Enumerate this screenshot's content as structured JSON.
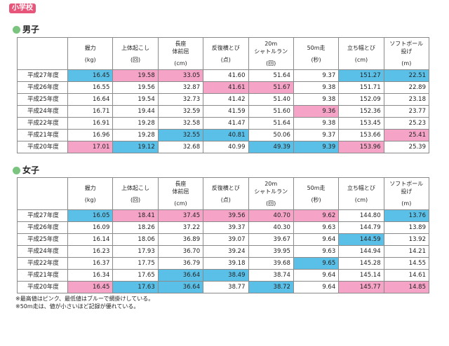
{
  "badge": "小学校",
  "colors": {
    "high": "#f5a3c7",
    "low": "#5bc0e8",
    "dot": "#7bc47f"
  },
  "headers": [
    {
      "name": "握力",
      "unit": "(kg)"
    },
    {
      "name": "上体起こし",
      "unit": "(回)"
    },
    {
      "name": "長座\n体前屈",
      "unit": "(cm)"
    },
    {
      "name": "反復横とび",
      "unit": "(点)"
    },
    {
      "name": "20m\nシャトルラン",
      "unit": "(回)"
    },
    {
      "name": "50m走",
      "unit": "(秒)"
    },
    {
      "name": "立ち幅とび",
      "unit": "(cm)"
    },
    {
      "name": "ソフトボール\n投げ",
      "unit": "(m)"
    }
  ],
  "sections": [
    {
      "title": "男子",
      "rows": [
        {
          "year": "平成27年度",
          "cells": [
            {
              "v": "16.45",
              "h": "lo"
            },
            {
              "v": "19.58",
              "h": "hi"
            },
            {
              "v": "33.05",
              "h": "hi"
            },
            {
              "v": "41.60",
              "h": ""
            },
            {
              "v": "51.64",
              "h": ""
            },
            {
              "v": "9.37",
              "h": ""
            },
            {
              "v": "151.27",
              "h": "lo"
            },
            {
              "v": "22.51",
              "h": "lo"
            }
          ]
        },
        {
          "year": "平成26年度",
          "cells": [
            {
              "v": "16.55",
              "h": ""
            },
            {
              "v": "19.56",
              "h": ""
            },
            {
              "v": "32.87",
              "h": ""
            },
            {
              "v": "41.61",
              "h": "hi"
            },
            {
              "v": "51.67",
              "h": "hi"
            },
            {
              "v": "9.38",
              "h": ""
            },
            {
              "v": "151.71",
              "h": ""
            },
            {
              "v": "22.89",
              "h": ""
            }
          ]
        },
        {
          "year": "平成25年度",
          "cells": [
            {
              "v": "16.64",
              "h": ""
            },
            {
              "v": "19.54",
              "h": ""
            },
            {
              "v": "32.73",
              "h": ""
            },
            {
              "v": "41.42",
              "h": ""
            },
            {
              "v": "51.40",
              "h": ""
            },
            {
              "v": "9.38",
              "h": ""
            },
            {
              "v": "152.09",
              "h": ""
            },
            {
              "v": "23.18",
              "h": ""
            }
          ]
        },
        {
          "year": "平成24年度",
          "cells": [
            {
              "v": "16.71",
              "h": ""
            },
            {
              "v": "19.44",
              "h": ""
            },
            {
              "v": "32.59",
              "h": ""
            },
            {
              "v": "41.59",
              "h": ""
            },
            {
              "v": "51.60",
              "h": ""
            },
            {
              "v": "9.36",
              "h": "hi"
            },
            {
              "v": "152.36",
              "h": ""
            },
            {
              "v": "23.77",
              "h": ""
            }
          ]
        },
        {
          "year": "平成22年度",
          "cells": [
            {
              "v": "16.91",
              "h": ""
            },
            {
              "v": "19.28",
              "h": ""
            },
            {
              "v": "32.58",
              "h": ""
            },
            {
              "v": "41.47",
              "h": ""
            },
            {
              "v": "51.64",
              "h": ""
            },
            {
              "v": "9.38",
              "h": ""
            },
            {
              "v": "153.45",
              "h": ""
            },
            {
              "v": "25.23",
              "h": ""
            }
          ]
        },
        {
          "year": "平成21年度",
          "cells": [
            {
              "v": "16.96",
              "h": ""
            },
            {
              "v": "19.28",
              "h": ""
            },
            {
              "v": "32.55",
              "h": "lo"
            },
            {
              "v": "40.81",
              "h": "lo"
            },
            {
              "v": "50.06",
              "h": ""
            },
            {
              "v": "9.37",
              "h": ""
            },
            {
              "v": "153.66",
              "h": ""
            },
            {
              "v": "25.41",
              "h": "hi"
            }
          ]
        },
        {
          "year": "平成20年度",
          "cells": [
            {
              "v": "17.01",
              "h": "hi"
            },
            {
              "v": "19.12",
              "h": "lo"
            },
            {
              "v": "32.68",
              "h": ""
            },
            {
              "v": "40.99",
              "h": ""
            },
            {
              "v": "49.39",
              "h": "lo"
            },
            {
              "v": "9.39",
              "h": "lo"
            },
            {
              "v": "153.96",
              "h": "hi"
            },
            {
              "v": "25.39",
              "h": ""
            }
          ]
        }
      ]
    },
    {
      "title": "女子",
      "rows": [
        {
          "year": "平成27年度",
          "cells": [
            {
              "v": "16.05",
              "h": "lo"
            },
            {
              "v": "18.41",
              "h": "hi"
            },
            {
              "v": "37.45",
              "h": "hi"
            },
            {
              "v": "39.56",
              "h": "hi"
            },
            {
              "v": "40.70",
              "h": "hi"
            },
            {
              "v": "9.62",
              "h": "hi"
            },
            {
              "v": "144.80",
              "h": ""
            },
            {
              "v": "13.76",
              "h": "lo"
            }
          ]
        },
        {
          "year": "平成26年度",
          "cells": [
            {
              "v": "16.09",
              "h": ""
            },
            {
              "v": "18.26",
              "h": ""
            },
            {
              "v": "37.22",
              "h": ""
            },
            {
              "v": "39.37",
              "h": ""
            },
            {
              "v": "40.30",
              "h": ""
            },
            {
              "v": "9.63",
              "h": ""
            },
            {
              "v": "144.79",
              "h": ""
            },
            {
              "v": "13.89",
              "h": ""
            }
          ]
        },
        {
          "year": "平成25年度",
          "cells": [
            {
              "v": "16.14",
              "h": ""
            },
            {
              "v": "18.06",
              "h": ""
            },
            {
              "v": "36.89",
              "h": ""
            },
            {
              "v": "39.07",
              "h": ""
            },
            {
              "v": "39.67",
              "h": ""
            },
            {
              "v": "9.64",
              "h": ""
            },
            {
              "v": "144.59",
              "h": "lo"
            },
            {
              "v": "13.92",
              "h": ""
            }
          ]
        },
        {
          "year": "平成24年度",
          "cells": [
            {
              "v": "16.23",
              "h": ""
            },
            {
              "v": "17.93",
              "h": ""
            },
            {
              "v": "36.70",
              "h": ""
            },
            {
              "v": "39.24",
              "h": ""
            },
            {
              "v": "39.95",
              "h": ""
            },
            {
              "v": "9.63",
              "h": ""
            },
            {
              "v": "144.94",
              "h": ""
            },
            {
              "v": "14.21",
              "h": ""
            }
          ]
        },
        {
          "year": "平成22年度",
          "cells": [
            {
              "v": "16.37",
              "h": ""
            },
            {
              "v": "17.75",
              "h": ""
            },
            {
              "v": "36.79",
              "h": ""
            },
            {
              "v": "39.18",
              "h": ""
            },
            {
              "v": "39.68",
              "h": ""
            },
            {
              "v": "9.65",
              "h": "lo"
            },
            {
              "v": "145.28",
              "h": ""
            },
            {
              "v": "14.55",
              "h": ""
            }
          ]
        },
        {
          "year": "平成21年度",
          "cells": [
            {
              "v": "16.34",
              "h": ""
            },
            {
              "v": "17.65",
              "h": ""
            },
            {
              "v": "36.64",
              "h": "lo"
            },
            {
              "v": "38.49",
              "h": "lo"
            },
            {
              "v": "38.74",
              "h": ""
            },
            {
              "v": "9.64",
              "h": ""
            },
            {
              "v": "145.14",
              "h": ""
            },
            {
              "v": "14.61",
              "h": ""
            }
          ]
        },
        {
          "year": "平成20年度",
          "cells": [
            {
              "v": "16.45",
              "h": "hi"
            },
            {
              "v": "17.63",
              "h": "lo"
            },
            {
              "v": "36.64",
              "h": "lo"
            },
            {
              "v": "38.77",
              "h": ""
            },
            {
              "v": "38.72",
              "h": "lo"
            },
            {
              "v": "9.64",
              "h": ""
            },
            {
              "v": "145.77",
              "h": "hi"
            },
            {
              "v": "14.85",
              "h": "hi"
            }
          ]
        }
      ]
    }
  ],
  "notes": [
    "※最高値はピンク、最低値はブルーで網掛けしている。",
    "※50m走は、値が小さいほど記録が優れている。"
  ]
}
